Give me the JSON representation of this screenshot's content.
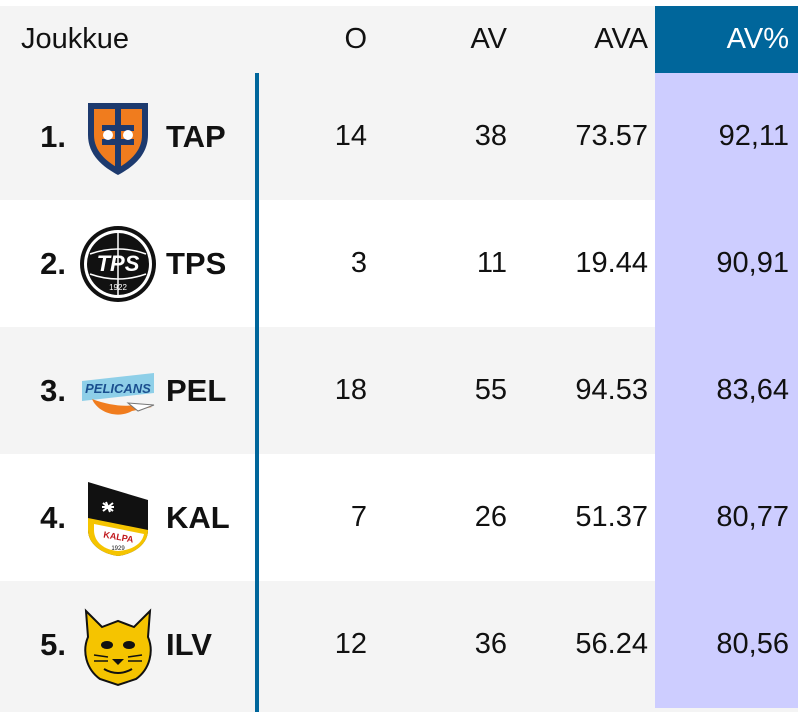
{
  "headers": {
    "team": "Joukkue",
    "games": "O",
    "av": "AV",
    "ava": "AVA",
    "av_pct": "AV%"
  },
  "rows": [
    {
      "rank": "1.",
      "abbr": "TAP",
      "games": "14",
      "av": "38",
      "ava": "73.57",
      "av_pct": "92,11",
      "logo": "tappara-logo"
    },
    {
      "rank": "2.",
      "abbr": "TPS",
      "games": "3",
      "av": "11",
      "ava": "19.44",
      "av_pct": "90,91",
      "logo": "tps-logo"
    },
    {
      "rank": "3.",
      "abbr": "PEL",
      "games": "18",
      "av": "55",
      "ava": "94.53",
      "av_pct": "83,64",
      "logo": "pelicans-logo"
    },
    {
      "rank": "4.",
      "abbr": "KAL",
      "games": "7",
      "av": "26",
      "ava": "51.37",
      "av_pct": "80,77",
      "logo": "kalpa-logo"
    },
    {
      "rank": "5.",
      "abbr": "ILV",
      "games": "12",
      "av": "36",
      "ava": "56.24",
      "av_pct": "80,56",
      "logo": "ilves-logo"
    }
  ],
  "logo_text": {
    "tps": "TPS",
    "tps_year": "1922",
    "pelicans": "PELICANS",
    "kalpa": "KALPA",
    "kalpa_year": "1929"
  },
  "colors": {
    "header_accent": "#00669b",
    "highlight_column": "#cdcdff",
    "row_alt": "#f4f4f4"
  }
}
